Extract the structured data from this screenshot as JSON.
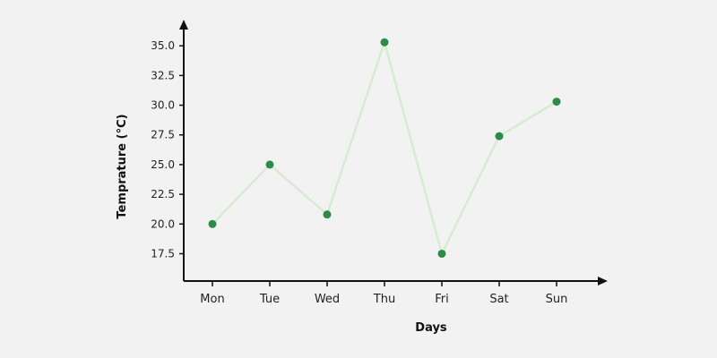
{
  "chart_data": {
    "type": "line",
    "title": "",
    "xlabel": "Days",
    "ylabel": "Temprature (°C)",
    "categories": [
      "Mon",
      "Tue",
      "Wed",
      "Thu",
      "Fri",
      "Sat",
      "Sun"
    ],
    "series": [
      {
        "values": [
          20.0,
          25.0,
          20.8,
          35.3,
          17.5,
          27.4,
          30.3
        ]
      }
    ],
    "yticks": [
      "17.5",
      "20.0",
      "22.5",
      "25.0",
      "27.5",
      "30.0",
      "32.5",
      "35.0"
    ],
    "ylim": [
      15.2,
      37.5
    ],
    "grid": false,
    "legend": "none",
    "colors": {
      "line": "#d6ecd2",
      "marker": "#2e8b47",
      "axis": "#111111",
      "background": "#f2f2f2"
    }
  }
}
